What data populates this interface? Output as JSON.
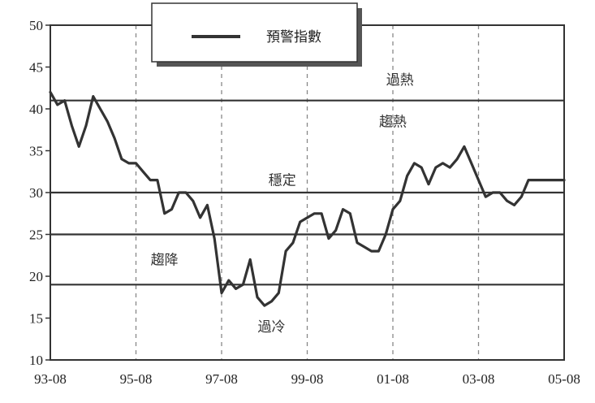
{
  "chart_data": {
    "type": "line",
    "title": "",
    "xlabel": "",
    "ylabel": "",
    "ylim": [
      10,
      50
    ],
    "xlim": [
      "1993-08",
      "2005-08"
    ],
    "y_ticks": [
      10,
      15,
      20,
      25,
      30,
      35,
      40,
      45,
      50
    ],
    "x_ticks": [
      "93-08",
      "95-08",
      "97-08",
      "99-08",
      "01-08",
      "03-08",
      "05-08"
    ],
    "grid": "vertical dashed",
    "legend_position": "top-center",
    "thresholds": [
      41,
      30,
      25,
      19
    ],
    "zones": [
      {
        "label": "過熱",
        "y": 43.5,
        "x": "2001-10"
      },
      {
        "label": "趨熱",
        "y": 38.5,
        "x": "2001-08"
      },
      {
        "label": "穩定",
        "y": 31.5,
        "x": "1999-01"
      },
      {
        "label": "趨降",
        "y": 22.0,
        "x": "1996-04"
      },
      {
        "label": "過冷",
        "y": 14.0,
        "x": "1998-10"
      }
    ],
    "series": [
      {
        "name": "預警指數",
        "x": [
          "1993-08",
          "1993-10",
          "1993-12",
          "1994-02",
          "1994-04",
          "1994-06",
          "1994-08",
          "1994-10",
          "1994-12",
          "1995-02",
          "1995-04",
          "1995-06",
          "1995-08",
          "1995-10",
          "1995-12",
          "1996-02",
          "1996-04",
          "1996-06",
          "1996-08",
          "1996-10",
          "1996-12",
          "1997-02",
          "1997-04",
          "1997-06",
          "1997-08",
          "1997-10",
          "1997-12",
          "1998-02",
          "1998-04",
          "1998-06",
          "1998-08",
          "1998-10",
          "1998-12",
          "1999-02",
          "1999-04",
          "1999-06",
          "1999-08",
          "1999-10",
          "1999-12",
          "2000-02",
          "2000-04",
          "2000-06",
          "2000-08",
          "2000-10",
          "2000-12",
          "2001-02",
          "2001-04",
          "2001-06",
          "2001-08",
          "2001-10",
          "2001-12",
          "2002-02",
          "2002-04",
          "2002-06",
          "2002-08",
          "2002-10",
          "2002-12",
          "2003-02",
          "2003-04",
          "2003-06",
          "2003-08",
          "2003-10",
          "2003-12",
          "2004-02",
          "2004-04",
          "2004-06",
          "2004-08",
          "2004-10",
          "2004-12",
          "2005-02",
          "2005-04",
          "2005-06",
          "2005-08"
        ],
        "values": [
          42,
          40.5,
          41,
          38,
          35.5,
          38,
          41.5,
          40,
          38.5,
          36.5,
          34,
          33.5,
          33.5,
          32.5,
          31.5,
          31.5,
          27.5,
          28,
          30,
          30,
          29,
          27,
          28.5,
          24.5,
          18,
          19.5,
          18.5,
          19,
          22,
          17.5,
          16.5,
          17,
          18,
          23,
          24,
          26.5,
          27,
          27.5,
          27.5,
          24.5,
          25.5,
          28,
          27.5,
          24,
          23.5,
          23,
          23,
          25,
          28,
          29,
          32,
          33.5,
          33,
          31,
          33,
          33.5,
          33,
          34,
          35.5,
          33.5,
          31.5,
          29.5,
          30,
          30,
          29,
          28.5,
          29.5,
          31.5,
          31.5,
          31.5,
          31.5,
          31.5,
          31.5
        ]
      }
    ]
  }
}
